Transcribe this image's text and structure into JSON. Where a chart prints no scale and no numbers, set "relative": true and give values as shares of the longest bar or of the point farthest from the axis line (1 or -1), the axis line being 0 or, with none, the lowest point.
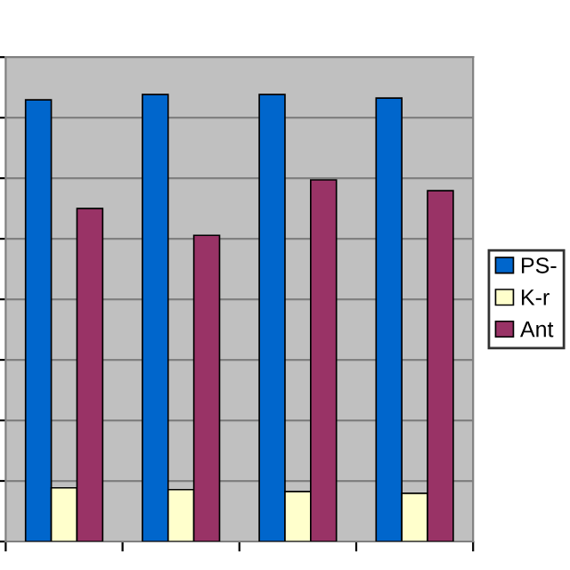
{
  "chart_data": {
    "type": "bar",
    "relative": true,
    "categories": [
      null,
      null,
      null,
      null
    ],
    "grid": "y",
    "legend": "right",
    "series": [
      {
        "name": "PS-",
        "color": "#0066cc",
        "values": [
          0.988,
          1,
          1,
          0.992
        ]
      },
      {
        "name": "K-r",
        "color": "#ffffcc",
        "values": [
          0.12,
          0.116,
          0.112,
          0.108
        ]
      },
      {
        "name": "Ant",
        "color": "#993366",
        "values": [
          0.745,
          0.685,
          0.809,
          0.785
        ]
      }
    ]
  }
}
